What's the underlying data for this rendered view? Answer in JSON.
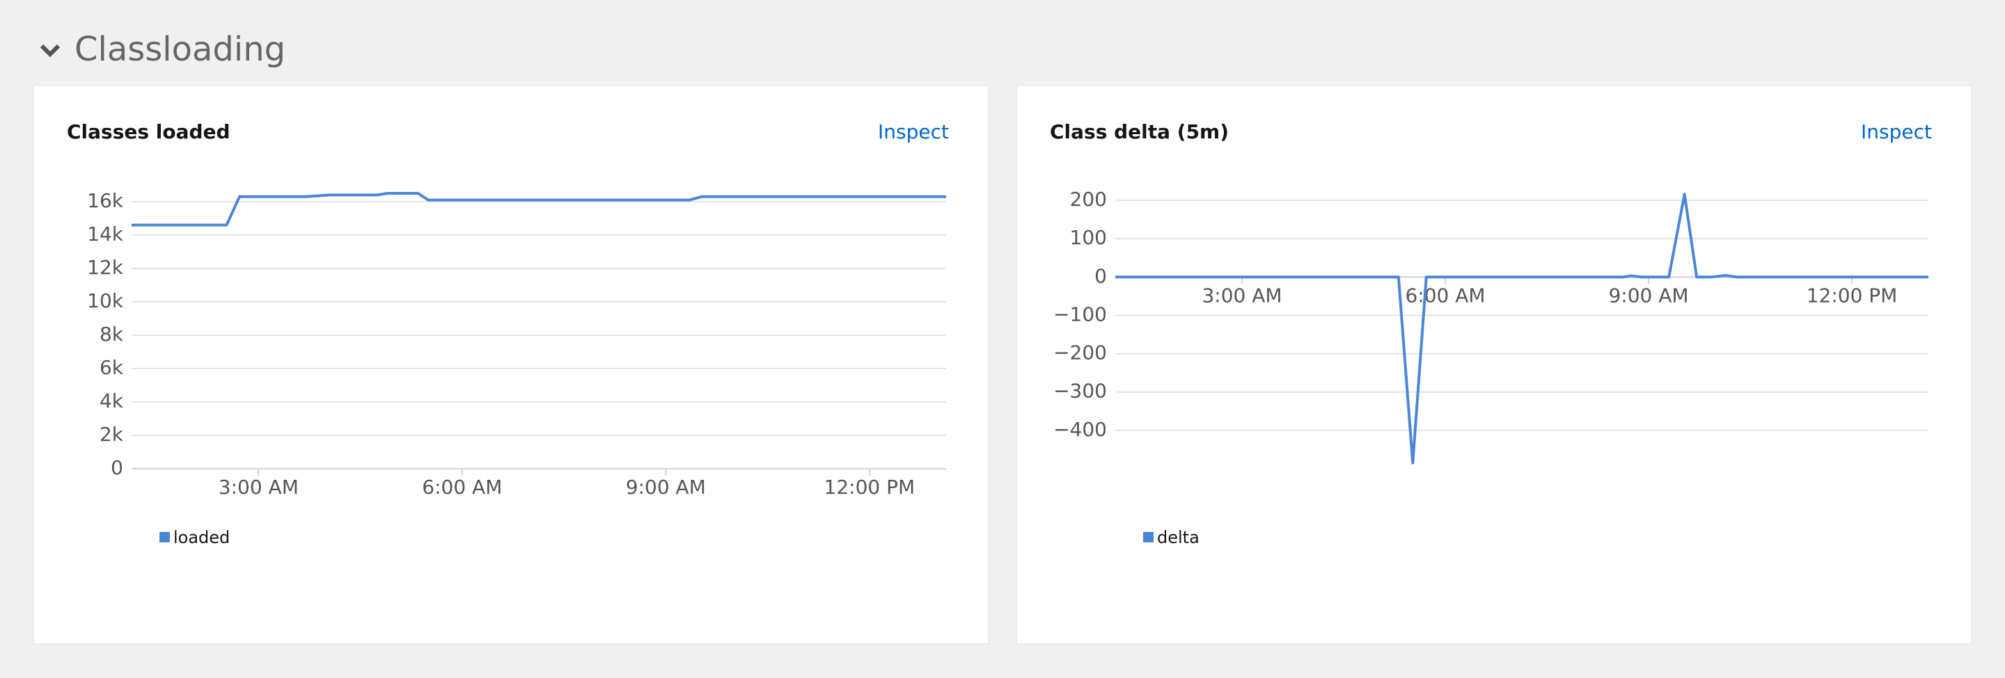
{
  "section": {
    "title": "Classloading"
  },
  "chart_data": [
    {
      "type": "line",
      "title": "Classes loaded",
      "action": "Inspect",
      "x": [
        1.13,
        2.53,
        2.72,
        3.71,
        4.05,
        4.75,
        4.9,
        5.35,
        5.5,
        8.6,
        9.35,
        9.53,
        13.13
      ],
      "series": [
        {
          "name": "loaded",
          "color": "#4a86d8",
          "values": [
            14600,
            14600,
            16300,
            16300,
            16400,
            16400,
            16500,
            16500,
            16100,
            16100,
            16100,
            16300,
            16300
          ]
        }
      ],
      "xlim": [
        1.13,
        13.13
      ],
      "xticks": [
        {
          "value": 3,
          "label": "3:00 AM"
        },
        {
          "value": 6,
          "label": "6:00 AM"
        },
        {
          "value": 9,
          "label": "9:00 AM"
        },
        {
          "value": 12,
          "label": "12:00 PM"
        }
      ],
      "ylim": [
        0,
        17000
      ],
      "yticks": [
        0,
        {
          "value": 2000,
          "label": "2k"
        },
        {
          "value": 4000,
          "label": "4k"
        },
        {
          "value": 6000,
          "label": "6k"
        },
        {
          "value": 8000,
          "label": "8k"
        },
        {
          "value": 10000,
          "label": "10k"
        },
        {
          "value": 12000,
          "label": "12k"
        },
        {
          "value": 14000,
          "label": "14k"
        },
        {
          "value": 16000,
          "label": "16k"
        }
      ],
      "grid": true
    },
    {
      "type": "line",
      "title": "Class delta (5m)",
      "action": "Inspect",
      "x": [
        1.13,
        5.31,
        5.52,
        5.72,
        8.63,
        8.74,
        8.9,
        9.3,
        9.53,
        9.71,
        9.94,
        10.13,
        10.3,
        13.13
      ],
      "series": [
        {
          "name": "delta",
          "color": "#4a86d8",
          "values": [
            0,
            0,
            -485,
            0,
            0,
            3,
            0,
            0,
            216,
            0,
            0,
            4,
            0,
            0
          ]
        }
      ],
      "xlim": [
        1.13,
        13.13
      ],
      "xticks": [
        {
          "value": 3,
          "label": "3:00 AM"
        },
        {
          "value": 6,
          "label": "6:00 AM"
        },
        {
          "value": 9,
          "label": "9:00 AM"
        },
        {
          "value": 12,
          "label": "12:00 PM"
        }
      ],
      "ylim": [
        -500,
        240
      ],
      "yticks": [
        200,
        100,
        0,
        {
          "value": -100,
          "label": "−100"
        },
        {
          "value": -200,
          "label": "−200"
        },
        {
          "value": -300,
          "label": "−300"
        },
        {
          "value": -400,
          "label": "−400"
        }
      ],
      "grid": true
    }
  ]
}
